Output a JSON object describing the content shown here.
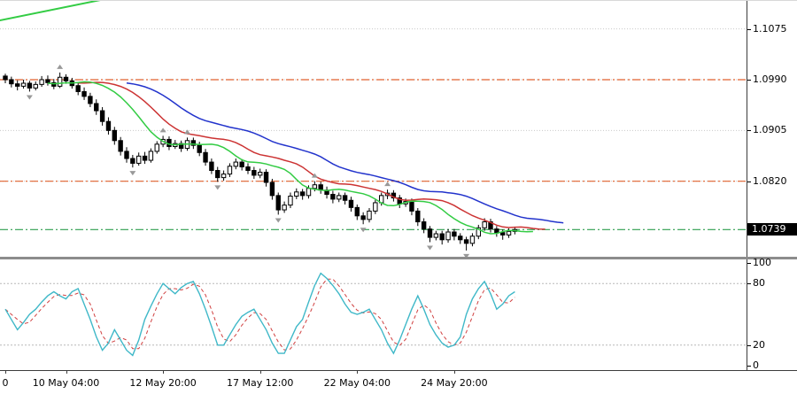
{
  "price_axis": {
    "labels": [
      {
        "price": 1.1075,
        "text": "1.1075"
      },
      {
        "price": 1.099,
        "text": "1.0990"
      },
      {
        "price": 1.0905,
        "text": "1.0905"
      },
      {
        "price": 1.082,
        "text": "1.0820"
      }
    ],
    "current": {
      "price": 1.0739,
      "text": "1.0739",
      "bg": "#000000",
      "fg": "#ffffff"
    }
  },
  "stoch_axis": {
    "labels": [
      {
        "value": 100,
        "text": "100"
      },
      {
        "value": 80,
        "text": "80"
      },
      {
        "value": 20,
        "text": "20"
      },
      {
        "value": 0,
        "text": "0"
      }
    ]
  },
  "time_axis": {
    "labels": [
      {
        "index": 0,
        "text": "0"
      },
      {
        "index": 10,
        "text": "10 May 04:00"
      },
      {
        "index": 26,
        "text": "12 May 20:00"
      },
      {
        "index": 42,
        "text": "17 May 12:00"
      },
      {
        "index": 58,
        "text": "22 May 04:00"
      },
      {
        "index": 74,
        "text": "24 May 20:00"
      }
    ]
  },
  "chart_data": {
    "type": "candlestick",
    "title": "",
    "ylim": [
      1.0695,
      1.111
    ],
    "grid_color": "#c9c9c9",
    "candle_up_fill": "#ffffff",
    "candle_down_fill": "#000000",
    "candle_stroke": "#000000",
    "candles": [
      [
        1.0996,
        1.1,
        1.0984,
        1.099
      ],
      [
        1.099,
        1.0995,
        1.0977,
        1.0983
      ],
      [
        1.0983,
        1.0989,
        1.0972,
        1.0979
      ],
      [
        1.0979,
        1.099,
        1.0975,
        1.0984
      ],
      [
        1.0984,
        1.0988,
        1.097,
        1.0976
      ],
      [
        1.0976,
        1.0987,
        1.0972,
        1.0982
      ],
      [
        1.0982,
        1.0996,
        1.0978,
        1.099
      ],
      [
        1.099,
        1.0997,
        1.098,
        1.0985
      ],
      [
        1.0985,
        1.0991,
        1.0974,
        1.0979
      ],
      [
        1.0979,
        1.1002,
        1.0976,
        1.0994
      ],
      [
        1.0994,
        1.0999,
        1.0983,
        1.0988
      ],
      [
        1.0988,
        1.0993,
        1.0975,
        1.098
      ],
      [
        1.098,
        1.0986,
        1.0964,
        1.097
      ],
      [
        1.097,
        1.0977,
        1.0956,
        1.0962
      ],
      [
        1.0962,
        1.0968,
        1.0944,
        1.095
      ],
      [
        1.095,
        1.0957,
        1.0931,
        1.0938
      ],
      [
        1.0938,
        1.0944,
        1.0913,
        1.092
      ],
      [
        1.092,
        1.0927,
        1.0898,
        1.0905
      ],
      [
        1.0905,
        1.0911,
        1.0881,
        1.0888
      ],
      [
        1.0888,
        1.0894,
        1.0863,
        1.087
      ],
      [
        1.087,
        1.0877,
        1.0851,
        1.0858
      ],
      [
        1.0858,
        1.0864,
        1.0843,
        1.085
      ],
      [
        1.085,
        1.0868,
        1.0846,
        1.0862
      ],
      [
        1.0862,
        1.0869,
        1.0849,
        1.0855
      ],
      [
        1.0855,
        1.0875,
        1.0851,
        1.087
      ],
      [
        1.087,
        1.0887,
        1.0866,
        1.0882
      ],
      [
        1.0882,
        1.0896,
        1.0877,
        1.089
      ],
      [
        1.089,
        1.0895,
        1.0872,
        1.0878
      ],
      [
        1.0878,
        1.0889,
        1.0874,
        1.0883
      ],
      [
        1.0883,
        1.0888,
        1.0869,
        1.0875
      ],
      [
        1.0875,
        1.0893,
        1.0871,
        1.0888
      ],
      [
        1.0888,
        1.0893,
        1.0874,
        1.088
      ],
      [
        1.088,
        1.0886,
        1.0862,
        1.0868
      ],
      [
        1.0868,
        1.0874,
        1.0846,
        1.0852
      ],
      [
        1.0852,
        1.0858,
        1.0832,
        1.0838
      ],
      [
        1.0838,
        1.0844,
        1.0819,
        1.0826
      ],
      [
        1.0826,
        1.0838,
        1.0821,
        1.0832
      ],
      [
        1.0832,
        1.085,
        1.0827,
        1.0845
      ],
      [
        1.0845,
        1.0858,
        1.084,
        1.0852
      ],
      [
        1.0852,
        1.0857,
        1.0838,
        1.0844
      ],
      [
        1.0844,
        1.085,
        1.0832,
        1.0838
      ],
      [
        1.0838,
        1.0844,
        1.0824,
        1.083
      ],
      [
        1.083,
        1.0841,
        1.0825,
        1.0835
      ],
      [
        1.0835,
        1.084,
        1.0811,
        1.0818
      ],
      [
        1.0818,
        1.0824,
        1.0789,
        1.0796
      ],
      [
        1.0796,
        1.0801,
        1.0764,
        1.0772
      ],
      [
        1.0772,
        1.0786,
        1.0767,
        1.078
      ],
      [
        1.078,
        1.0801,
        1.0775,
        1.0795
      ],
      [
        1.0795,
        1.0808,
        1.079,
        1.0802
      ],
      [
        1.0802,
        1.0807,
        1.0789,
        1.0796
      ],
      [
        1.0796,
        1.0813,
        1.0791,
        1.0808
      ],
      [
        1.0808,
        1.082,
        1.0803,
        1.0814
      ],
      [
        1.0814,
        1.0819,
        1.0799,
        1.0805
      ],
      [
        1.0805,
        1.0811,
        1.0791,
        1.0798
      ],
      [
        1.0798,
        1.0804,
        1.0783,
        1.079
      ],
      [
        1.079,
        1.0801,
        1.0785,
        1.0796
      ],
      [
        1.0796,
        1.0801,
        1.0781,
        1.0788
      ],
      [
        1.0788,
        1.0794,
        1.0769,
        1.0776
      ],
      [
        1.0776,
        1.0781,
        1.0755,
        1.0762
      ],
      [
        1.0762,
        1.0768,
        1.0748,
        1.0756
      ],
      [
        1.0756,
        1.0775,
        1.0751,
        1.077
      ],
      [
        1.077,
        1.0789,
        1.0765,
        1.0784
      ],
      [
        1.0784,
        1.0801,
        1.0779,
        1.0796
      ],
      [
        1.0796,
        1.0806,
        1.079,
        1.08
      ],
      [
        1.08,
        1.0805,
        1.0786,
        1.0792
      ],
      [
        1.0792,
        1.0797,
        1.0775,
        1.0782
      ],
      [
        1.0782,
        1.0791,
        1.0777,
        1.0786
      ],
      [
        1.0786,
        1.0791,
        1.0763,
        1.077
      ],
      [
        1.077,
        1.0775,
        1.0745,
        1.0752
      ],
      [
        1.0752,
        1.0758,
        1.0733,
        1.074
      ],
      [
        1.074,
        1.0745,
        1.0718,
        1.0726
      ],
      [
        1.0726,
        1.0737,
        1.0721,
        1.0732
      ],
      [
        1.0732,
        1.0737,
        1.0714,
        1.0722
      ],
      [
        1.0722,
        1.074,
        1.0717,
        1.0735
      ],
      [
        1.0735,
        1.074,
        1.0721,
        1.0728
      ],
      [
        1.0728,
        1.0733,
        1.0715,
        1.0722
      ],
      [
        1.0722,
        1.0727,
        1.0704,
        1.0716
      ],
      [
        1.0716,
        1.0733,
        1.0711,
        1.0728
      ],
      [
        1.0728,
        1.0747,
        1.0723,
        1.0742
      ],
      [
        1.0742,
        1.0758,
        1.0737,
        1.0752
      ],
      [
        1.0752,
        1.0757,
        1.0734,
        1.074
      ],
      [
        1.074,
        1.0745,
        1.0727,
        1.0734
      ],
      [
        1.0734,
        1.0739,
        1.0722,
        1.073
      ],
      [
        1.073,
        1.0741,
        1.0725,
        1.0736
      ],
      [
        1.0736,
        1.0744,
        1.0731,
        1.0739
      ]
    ],
    "overlays": {
      "alligator": {
        "jaw": {
          "period": 13,
          "shift": 8,
          "color": "#2233cc"
        },
        "teeth": {
          "period": 8,
          "shift": 5,
          "color": "#cc3333"
        },
        "lips": {
          "period": 5,
          "shift": 3,
          "color": "#33cc44"
        }
      },
      "levels": [
        {
          "price": 1.099,
          "color": "#e0622e",
          "style": "dashdot"
        },
        {
          "price": 1.082,
          "color": "#e0622e",
          "style": "dashdot"
        },
        {
          "price": 1.0739,
          "color": "#2f9e4e",
          "style": "dashdot"
        }
      ],
      "trendline": {
        "i1": -1,
        "p1": 1.1089,
        "i2": 16,
        "p2": 1.1124,
        "color": "#33cc44",
        "width": 2
      },
      "fractals": {
        "color": "#999999",
        "up": [
          9,
          26,
          30,
          51,
          63
        ],
        "down": [
          4,
          21,
          35,
          45,
          59,
          70,
          76
        ]
      }
    },
    "stochastic": {
      "range": [
        0,
        100
      ],
      "levels": [
        80,
        20
      ],
      "k_color": "#3fb8c8",
      "d_color": "#d04040",
      "d_period": 3,
      "k": [
        55,
        45,
        35,
        42,
        50,
        55,
        62,
        68,
        72,
        68,
        65,
        72,
        75,
        60,
        45,
        28,
        15,
        22,
        35,
        25,
        15,
        10,
        25,
        45,
        58,
        70,
        80,
        75,
        70,
        76,
        80,
        82,
        70,
        55,
        38,
        20,
        20,
        30,
        40,
        48,
        52,
        55,
        45,
        35,
        22,
        12,
        12,
        25,
        38,
        45,
        62,
        78,
        90,
        85,
        78,
        70,
        60,
        52,
        50,
        52,
        55,
        45,
        35,
        22,
        12,
        25,
        40,
        55,
        68,
        55,
        40,
        30,
        22,
        18,
        20,
        28,
        50,
        65,
        75,
        82,
        70,
        55,
        60,
        68,
        72
      ]
    }
  }
}
